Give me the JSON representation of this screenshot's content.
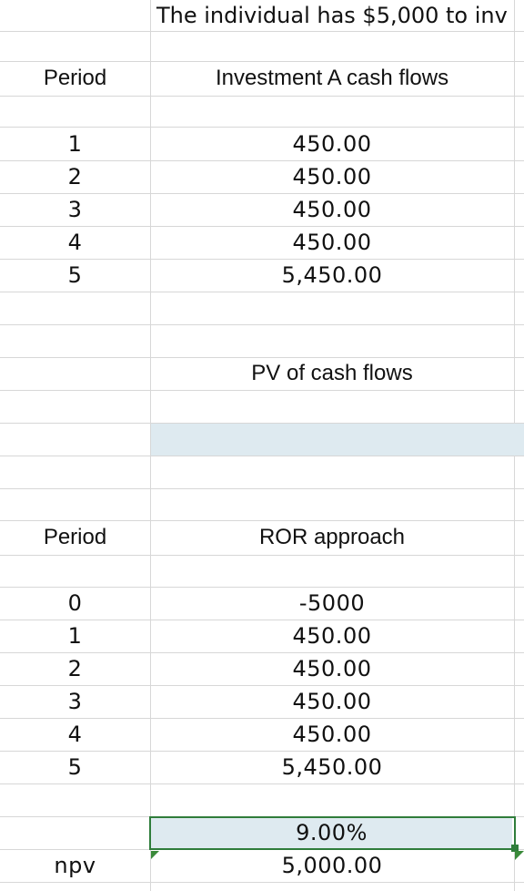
{
  "sheet": {
    "title": "The individual has $5,000 to inv",
    "section1": {
      "period_header": "Period",
      "col_header": "Investment A cash flows",
      "periods": [
        "1",
        "2",
        "3",
        "4",
        "5"
      ],
      "cash_flows": [
        "450.00",
        "450.00",
        "450.00",
        "450.00",
        "5,450.00"
      ],
      "pv_label": "PV of cash flows"
    },
    "section2": {
      "period_header": "Period",
      "col_header": "ROR approach",
      "periods": [
        "0",
        "1",
        "2",
        "3",
        "4",
        "5"
      ],
      "cash_flows": [
        "-5000",
        "450.00",
        "450.00",
        "450.00",
        "450.00",
        "5,450.00"
      ],
      "rate": "9.00%",
      "npv_label": "npv",
      "npv_value": "5,000.00"
    },
    "colors": {
      "gridline": "#d7d7d7",
      "cell_fill": "#deeaf0",
      "selection": "#2f7d3b"
    }
  }
}
